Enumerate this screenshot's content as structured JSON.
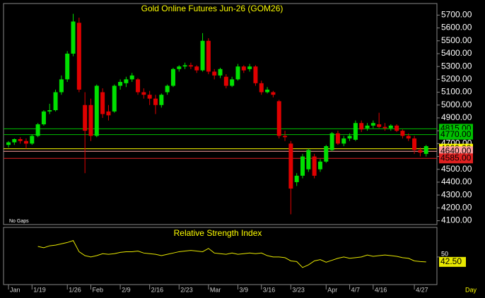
{
  "chart_data": [
    {
      "type": "candlestick",
      "title": "Gold Online Futures Jun-26 (GOM26)",
      "note": "No Gaps",
      "up_color": "#00e000",
      "down_color": "#e00000",
      "open": [
        4690,
        4710,
        4735,
        4720,
        4700,
        4760,
        4850,
        4950,
        4960,
        5100,
        5200,
        5400,
        5640,
        5000,
        5000,
        4760,
        5100,
        4950,
        4950,
        5150,
        5170,
        5200,
        5200,
        5100,
        5080,
        5050,
        5000,
        5100,
        5150,
        5280,
        5300,
        5310,
        5300,
        5270,
        5500,
        5260,
        5230,
        5220,
        5150,
        5200,
        5300,
        5280,
        5300,
        5170,
        5100,
        5100,
        5030,
        4760,
        4700,
        4400,
        4450,
        4500,
        4600,
        4500,
        4560,
        4650,
        4780,
        4700,
        4740,
        4730,
        4860,
        4820,
        4840,
        4850,
        4830,
        4820,
        4840,
        4800,
        4760,
        4740,
        4650,
        4620
      ],
      "high": [
        4720,
        4740,
        4750,
        4740,
        4770,
        4860,
        4960,
        5010,
        5120,
        5230,
        5420,
        5710,
        5680,
        5100,
        5050,
        5160,
        5130,
        5000,
        5160,
        5200,
        5220,
        5250,
        5210,
        5130,
        5110,
        5080,
        5090,
        5160,
        5290,
        5310,
        5330,
        5330,
        5310,
        5560,
        5520,
        5280,
        5290,
        5240,
        5220,
        5320,
        5310,
        5320,
        5310,
        5190,
        5140,
        5110,
        5040,
        4800,
        4720,
        4470,
        4620,
        4660,
        4620,
        4580,
        4690,
        4790,
        4800,
        4760,
        4780,
        4880,
        4880,
        4860,
        4880,
        4940,
        4860,
        4850,
        4850,
        4810,
        4780,
        4760,
        4670,
        4690
      ],
      "low": [
        4670,
        4690,
        4700,
        4660,
        4690,
        4750,
        4840,
        4930,
        4950,
        5080,
        5180,
        5380,
        5100,
        4470,
        4720,
        4750,
        4900,
        4880,
        4940,
        5120,
        5140,
        5180,
        5080,
        5050,
        5000,
        4930,
        4980,
        5080,
        5140,
        5260,
        5280,
        5280,
        5250,
        5260,
        5240,
        5200,
        5210,
        5130,
        5140,
        5190,
        5250,
        5260,
        5150,
        5080,
        5090,
        5060,
        4740,
        4720,
        4150,
        4370,
        4430,
        4480,
        4430,
        4480,
        4550,
        4640,
        4690,
        4680,
        4720,
        4720,
        4790,
        4800,
        4820,
        4820,
        4800,
        4800,
        4790,
        4740,
        4720,
        4620,
        4600,
        4600
      ],
      "close": [
        4710,
        4735,
        4720,
        4700,
        4760,
        4850,
        4950,
        4960,
        5100,
        5200,
        5400,
        5650,
        5120,
        4800,
        4760,
        5150,
        4930,
        4920,
        5150,
        5180,
        5200,
        5230,
        5100,
        5080,
        5050,
        5000,
        5080,
        5150,
        5280,
        5300,
        5310,
        5300,
        5270,
        5500,
        5260,
        5230,
        5280,
        5150,
        5200,
        5300,
        5270,
        5300,
        5170,
        5100,
        5120,
        5080,
        4760,
        4750,
        4350,
        4450,
        4600,
        4650,
        4450,
        4560,
        4680,
        4780,
        4700,
        4740,
        4760,
        4860,
        4810,
        4840,
        4860,
        4830,
        4820,
        4840,
        4800,
        4760,
        4740,
        4650,
        4630,
        4680
      ],
      "ylim": [
        4070,
        5790
      ],
      "yticks": [
        {
          "value": 4100,
          "label": "4100.00"
        },
        {
          "value": 4200,
          "label": "4200.00"
        },
        {
          "value": 4300,
          "label": "4300.00"
        },
        {
          "value": 4400,
          "label": "4400.00"
        },
        {
          "value": 4500,
          "label": "4500.00"
        },
        {
          "value": 4600,
          "label": "4600.00"
        },
        {
          "value": 4700,
          "label": "4700.00"
        },
        {
          "value": 4800,
          "label": "4800.00"
        },
        {
          "value": 4900,
          "label": "4900.00"
        },
        {
          "value": 5000,
          "label": "5000.00"
        },
        {
          "value": 5100,
          "label": "5100.00"
        },
        {
          "value": 5200,
          "label": "5200.00"
        },
        {
          "value": 5300,
          "label": "5300.00"
        },
        {
          "value": 5400,
          "label": "5400.00"
        },
        {
          "value": 5500,
          "label": "5500.00"
        },
        {
          "value": 5600,
          "label": "5600.00"
        },
        {
          "value": 5700,
          "label": "5700.00"
        }
      ],
      "levels": [
        {
          "value": 4815,
          "label": "4815.00",
          "color": "#00c000"
        },
        {
          "value": 4770,
          "label": "4770.00",
          "color": "#00c000"
        },
        {
          "value": 4660,
          "label": "4660.00",
          "color": "#ffff00"
        },
        {
          "value": 4640,
          "label": "4640.00",
          "color": "#ff9f9f"
        },
        {
          "value": 4585,
          "label": "4585.00",
          "color": "#e02020"
        }
      ],
      "xticks": [
        {
          "value": 0,
          "label": "Jan"
        },
        {
          "value": 4,
          "label": "1/19"
        },
        {
          "value": 10,
          "label": "1/26"
        },
        {
          "value": 14,
          "label": "Feb"
        },
        {
          "value": 19,
          "label": "2/9"
        },
        {
          "value": 24,
          "label": "2/16"
        },
        {
          "value": 29,
          "label": "2/23"
        },
        {
          "value": 34,
          "label": "Mar"
        },
        {
          "value": 39,
          "label": "3/9"
        },
        {
          "value": 43,
          "label": "3/16"
        },
        {
          "value": 48,
          "label": "3/23"
        },
        {
          "value": 54,
          "label": "Apr"
        },
        {
          "value": 58,
          "label": "4/7"
        },
        {
          "value": 62,
          "label": "4/16"
        },
        {
          "value": 69,
          "label": "4/27"
        }
      ],
      "xlabel": "Day"
    },
    {
      "type": "line",
      "title": "Relative Strength Index",
      "color": "#e8e800",
      "values": [
        null,
        null,
        null,
        null,
        null,
        66,
        64,
        67,
        68,
        70,
        72,
        75,
        58,
        52,
        50,
        52,
        55,
        54,
        55,
        57,
        58,
        58,
        59,
        56,
        55,
        54,
        52,
        54,
        56,
        58,
        59,
        60,
        59,
        58,
        63,
        56,
        55,
        54,
        56,
        54,
        55,
        56,
        55,
        56,
        52,
        50,
        50,
        49,
        44,
        43,
        34,
        38,
        44,
        46,
        42,
        45,
        48,
        50,
        48,
        49,
        50,
        53,
        51,
        52,
        53,
        52,
        51,
        49,
        48,
        44,
        43,
        42.5
      ],
      "last_label": "42.50",
      "ylim": [
        8,
        95
      ],
      "yticks": [
        50
      ]
    }
  ]
}
